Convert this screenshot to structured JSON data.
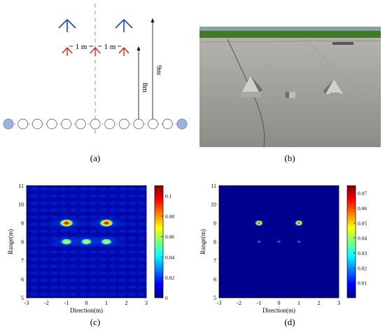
{
  "panel_a": {
    "caption": "(a)",
    "spacing_labels": [
      "1 m",
      "1 m"
    ],
    "range_label_inner": "8m",
    "range_label_outer": "9m",
    "array_elements": 13
  },
  "panel_b": {
    "caption": "(b)"
  },
  "panel_c": {
    "caption": "(c)",
    "xlabel": "Direction(m)",
    "ylabel": "Range(m)",
    "xticks": [
      "-3",
      "-2",
      "-1",
      "0",
      "1",
      "2",
      "3"
    ],
    "yticks": [
      "5",
      "6",
      "7",
      "8",
      "9",
      "10",
      "11"
    ],
    "colorbar_ticks": [
      "0",
      "0.02",
      "0.04",
      "0.06",
      "0.08",
      "0.1"
    ]
  },
  "panel_d": {
    "caption": "(d)",
    "xlabel": "Direction(m)",
    "ylabel": "Range(m)",
    "xticks": [
      "-3",
      "-2",
      "-1",
      "0",
      "1",
      "2",
      "3"
    ],
    "yticks": [
      "5",
      "6",
      "7",
      "8",
      "9",
      "10",
      "11"
    ],
    "colorbar_ticks": [
      "0.01",
      "0.02",
      "0.03",
      "0.04",
      "0.05",
      "0.06",
      "0.07"
    ]
  },
  "chart_data": [
    {
      "type": "heatmap",
      "panel": "c",
      "xlabel": "Direction(m)",
      "ylabel": "Range(m)",
      "xlim": [
        -3,
        3
      ],
      "ylim": [
        5,
        11
      ],
      "clim": [
        0,
        0.11
      ],
      "targets": [
        {
          "x": -1,
          "y": 9,
          "value": 0.11
        },
        {
          "x": 1,
          "y": 9,
          "value": 0.11
        },
        {
          "x": -1,
          "y": 8,
          "value": 0.09
        },
        {
          "x": 0,
          "y": 8,
          "value": 0.09
        },
        {
          "x": 1,
          "y": 8,
          "value": 0.09
        }
      ]
    },
    {
      "type": "heatmap",
      "panel": "d",
      "xlabel": "Direction(m)",
      "ylabel": "Range(m)",
      "xlim": [
        -3,
        3
      ],
      "ylim": [
        5,
        11
      ],
      "clim": [
        0,
        0.075
      ],
      "targets": [
        {
          "x": -1,
          "y": 9,
          "value": 0.075
        },
        {
          "x": 1,
          "y": 9,
          "value": 0.075
        },
        {
          "x": -1,
          "y": 8,
          "value": 0.025
        },
        {
          "x": 0,
          "y": 8,
          "value": 0.02
        },
        {
          "x": 1,
          "y": 8,
          "value": 0.025
        }
      ]
    }
  ]
}
